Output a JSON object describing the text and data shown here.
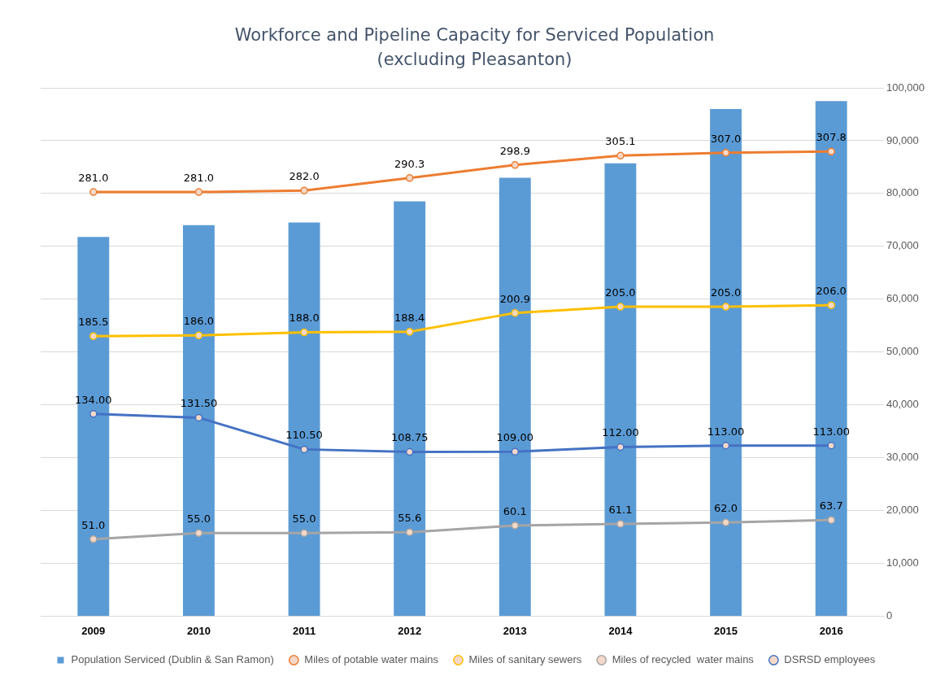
{
  "chart_data": {
    "type": "bar",
    "title": "Workforce and Pipeline Capacity for Serviced Population",
    "subtitle": "(excluding Pleasanton)",
    "categories": [
      "2009",
      "2010",
      "2011",
      "2012",
      "2013",
      "2014",
      "2015",
      "2016"
    ],
    "series": [
      {
        "name": "Population Serviced (Dublin & San Ramon)",
        "axis": "y2",
        "color": "#5b9bd5",
        "values": [
          71800,
          74000,
          74500,
          78500,
          83000,
          85700,
          96000,
          97500
        ]
      },
      {
        "name": "Miles of potable water mains",
        "type": "line",
        "color": "#ed7d31",
        "values": [
          281.0,
          281.0,
          282.0,
          290.3,
          298.9,
          305.1,
          307.0,
          307.8
        ],
        "value_labels": [
          "281.0",
          "281.0",
          "282.0",
          "290.3",
          "298.9",
          "305.1",
          "307.0",
          "307.8"
        ]
      },
      {
        "name": "Miles of sanitary sewers",
        "type": "line",
        "color": "#ffc000",
        "values": [
          185.5,
          186.0,
          188.0,
          188.4,
          200.9,
          205.0,
          205.0,
          206.0
        ],
        "value_labels": [
          "185.5",
          "186.0",
          "188.0",
          "188.4",
          "200.9",
          "205.0",
          "205.0",
          "206.0"
        ]
      },
      {
        "name": "Miles of recycled  water mains",
        "type": "line",
        "color": "#a5a5a5",
        "values": [
          51.0,
          55.0,
          55.0,
          55.6,
          60.1,
          61.1,
          62.0,
          63.7
        ],
        "value_labels": [
          "51.0",
          "55.0",
          "55.0",
          "55.6",
          "60.1",
          "61.1",
          "62.0",
          "63.7"
        ]
      },
      {
        "name": "DSRSD employees",
        "type": "line",
        "color": "#4472c4",
        "values": [
          134.0,
          131.5,
          110.5,
          108.75,
          109.0,
          112.0,
          113.0,
          113.0
        ],
        "value_labels": [
          "134.00",
          "131.50",
          "110.50",
          "108.75",
          "109.00",
          "112.00",
          "113.00",
          "113.00"
        ]
      }
    ],
    "ylim": [
      0,
      350
    ],
    "y2lim": [
      0,
      100000
    ],
    "y2ticks": [
      0,
      {
        "value": 10000,
        "label": "10,000"
      },
      {
        "value": 20000,
        "label": "20,000"
      },
      {
        "value": 30000,
        "label": "30,000"
      },
      {
        "value": 40000,
        "label": "40,000"
      },
      {
        "value": 50000,
        "label": "50,000"
      },
      {
        "value": 60000,
        "label": "60,000"
      },
      {
        "value": 70000,
        "label": "70,000"
      },
      {
        "value": 80000,
        "label": "80,000"
      },
      {
        "value": 90000,
        "label": "90,000"
      },
      {
        "value": 100000,
        "label": "100,000"
      }
    ],
    "grid": "y",
    "legend": "bottom",
    "marker": "circle",
    "line_style": "solid"
  }
}
